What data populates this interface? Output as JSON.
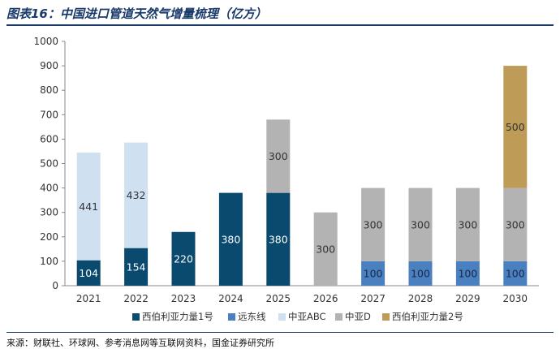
{
  "header": {
    "title": "图表16：中国进口管道天然气增量梳理（亿方）"
  },
  "footer": {
    "source": "来源：财联社、环球网、参考消息网等互联网资料，国金证券研究所"
  },
  "chart_data": {
    "type": "bar",
    "stacked": true,
    "categories": [
      "2021",
      "2022",
      "2023",
      "2024",
      "2025",
      "2026",
      "2027",
      "2028",
      "2029",
      "2030"
    ],
    "series": [
      {
        "name": "西伯利亚力量1号",
        "color": "#0b4a6f",
        "label_color": "#ffffff",
        "values": [
          104,
          154,
          220,
          380,
          380,
          0,
          0,
          0,
          0,
          0
        ]
      },
      {
        "name": "远东线",
        "color": "#4a7fc0",
        "label_color": "#1a2a44",
        "values": [
          0,
          0,
          0,
          0,
          0,
          0,
          100,
          100,
          100,
          100
        ]
      },
      {
        "name": "中亚ABC",
        "color": "#cfe0f1",
        "label_color": "#333333",
        "values": [
          441,
          432,
          0,
          0,
          0,
          0,
          0,
          0,
          0,
          0
        ]
      },
      {
        "name": "中亚D",
        "color": "#b3b3b3",
        "label_color": "#333333",
        "values": [
          0,
          0,
          0,
          0,
          300,
          300,
          300,
          300,
          300,
          300
        ]
      },
      {
        "name": "西伯利亚力量2号",
        "color": "#bf9b58",
        "label_color": "#333333",
        "values": [
          0,
          0,
          0,
          0,
          0,
          0,
          0,
          0,
          0,
          500
        ]
      }
    ],
    "yticks": [
      0,
      100,
      200,
      300,
      400,
      500,
      600,
      700,
      800,
      900,
      1000
    ],
    "ylim": [
      0,
      1000
    ],
    "xlabel": "",
    "ylabel": "",
    "grid": false,
    "legend_position": "bottom"
  }
}
